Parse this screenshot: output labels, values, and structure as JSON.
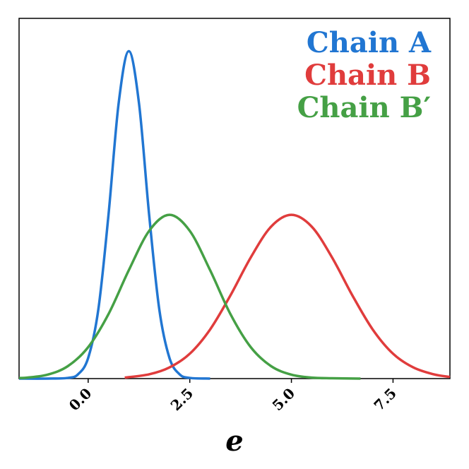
{
  "chart_data": {
    "type": "line",
    "x_label": "e",
    "xlim": [
      -1.7,
      8.9
    ],
    "ylim": [
      0,
      1.1
    ],
    "xticks": [
      {
        "value": 0,
        "label": "0.0"
      },
      2.5,
      {
        "value": 5,
        "label": "5.0"
      },
      7.5
    ],
    "legend": "upper right",
    "series": [
      {
        "name": "Chain A",
        "color": "#2176d2",
        "x": [
          -1.7,
          -1,
          -0.5,
          -0.25,
          0,
          0.25,
          0.5,
          0.75,
          1,
          1.25,
          1.5,
          1.75,
          2,
          2.25,
          2.5,
          3
        ],
        "values": [
          0,
          0,
          0.002,
          0.013,
          0.063,
          0.211,
          0.5,
          0.841,
          1,
          0.841,
          0.5,
          0.211,
          0.063,
          0.013,
          0.002,
          0
        ]
      },
      {
        "name": "Chain B",
        "color": "#e03c3c",
        "x": [
          0.9,
          1.5,
          2,
          2.5,
          3,
          3.5,
          4,
          4.5,
          5,
          5.5,
          6,
          6.5,
          7,
          7.5,
          8,
          8.5,
          8.9
        ],
        "values": [
          0.003,
          0.013,
          0.034,
          0.076,
          0.15,
          0.254,
          0.37,
          0.464,
          0.5,
          0.464,
          0.37,
          0.254,
          0.15,
          0.076,
          0.034,
          0.013,
          0.005
        ]
      },
      {
        "name": "Chain B′",
        "color": "#45a045",
        "x": [
          -1.7,
          -1.5,
          -1,
          -0.5,
          0,
          0.5,
          1,
          1.5,
          2,
          2.5,
          3,
          3.5,
          4,
          4.5,
          5,
          5.5,
          6,
          6.7
        ],
        "values": [
          0.002,
          0.003,
          0.012,
          0.038,
          0.096,
          0.197,
          0.331,
          0.451,
          0.5,
          0.451,
          0.331,
          0.197,
          0.096,
          0.038,
          0.012,
          0.003,
          0.001,
          0
        ]
      }
    ]
  }
}
